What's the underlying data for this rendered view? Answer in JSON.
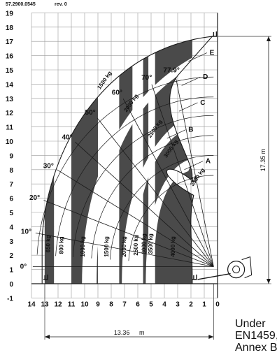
{
  "header": {
    "doc_number": "57.2900.0545",
    "revision": "rev. 0"
  },
  "standard_note": [
    "Under",
    "EN1459,",
    "Annex B"
  ],
  "colors": {
    "zone_dark": "#4a4a4a",
    "grid": "#9a9a9a",
    "line": "#1a1a1a",
    "background": "#ffffff"
  },
  "chart_data": {
    "type": "load_chart",
    "units": "m",
    "x_axis": {
      "direction": "reversed",
      "min": 0,
      "max": 14,
      "tick_labels": [
        "14",
        "13",
        "12",
        "11",
        "10",
        "9",
        "8",
        "7",
        "6",
        "5",
        "4",
        "3",
        "2",
        "1",
        "0"
      ]
    },
    "y_axis": {
      "min": -1,
      "max": 19,
      "tick_labels": [
        "-1",
        "0",
        "1",
        "2",
        "3",
        "4",
        "5",
        "6",
        "7",
        "8",
        "9",
        "10",
        "11",
        "12",
        "13",
        "14",
        "15",
        "16",
        "17",
        "18",
        "19"
      ]
    },
    "grid": true,
    "max_lift_height": "17.35 m",
    "max_forward_reach": "13.36",
    "max_reach_unit": "m",
    "boom_extensions": [
      "A",
      "B",
      "C",
      "D",
      "E"
    ],
    "boom_angles": [
      "0°",
      "10°",
      "20°",
      "30°",
      "40°",
      "50°",
      "60°",
      "70°",
      "77.9°"
    ],
    "load_zones": [
      {
        "load": "650 kg",
        "x_range": [
          12.3,
          13.0
        ],
        "shade": "dark"
      },
      {
        "load": "800 kg",
        "x_range": [
          11.0,
          12.3
        ],
        "shade": "light"
      },
      {
        "load": "1000 kg",
        "x_range": [
          9.0,
          11.0
        ],
        "shade": "dark"
      },
      {
        "load": "1500 kg",
        "x_range": [
          7.4,
          9.0
        ],
        "shade": "light"
      },
      {
        "load": "2000 kg",
        "x_range": [
          6.4,
          7.4
        ],
        "shade": "dark"
      },
      {
        "load": "2500 kg",
        "x_range": [
          5.6,
          6.4
        ],
        "shade": "light"
      },
      {
        "load": "3000 kg",
        "x_range": [
          5.2,
          5.6
        ],
        "shade": "dark"
      },
      {
        "load": "3500 kg",
        "x_range": [
          4.7,
          5.2
        ],
        "shade": "light"
      },
      {
        "load": "4000 kg",
        "x_range": [
          1.9,
          4.7
        ],
        "shade": "dark"
      }
    ]
  }
}
